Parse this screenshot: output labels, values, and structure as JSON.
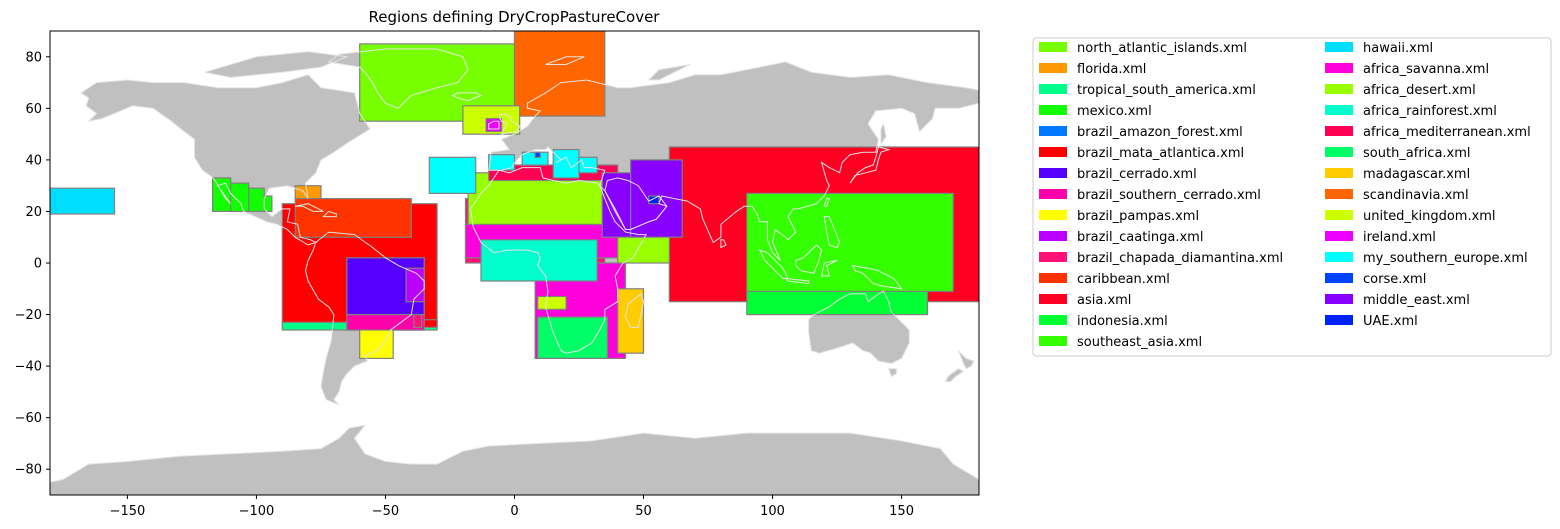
{
  "title": "Regions defining DryCropPastureCover",
  "colors": {
    "land": "#c0c0c0",
    "coast": "#e4e4e4",
    "region_edge": "#808080",
    "ocean": "#ffffff"
  },
  "chart_data": {
    "type": "map",
    "title": "Regions defining DryCropPastureCover",
    "xlim": [
      -180,
      180
    ],
    "ylim": [
      -90,
      90
    ],
    "xticks": [
      -150,
      -100,
      -50,
      0,
      50,
      100,
      150
    ],
    "yticks": [
      -80,
      -60,
      -40,
      -20,
      0,
      20,
      40,
      60,
      80
    ],
    "legend_position": "outside-right",
    "regions": [
      {
        "name": "north_atlantic_islands.xml",
        "color": "#77ff00",
        "boxes": [
          [
            -60,
            55,
            0,
            85
          ]
        ]
      },
      {
        "name": "florida.xml",
        "color": "#ff9900",
        "boxes": [
          [
            -85,
            24,
            -75,
            30
          ]
        ]
      },
      {
        "name": "tropical_south_america.xml",
        "color": "#00ff88",
        "boxes": [
          [
            -90,
            -26,
            -30,
            -23
          ]
        ]
      },
      {
        "name": "mexico.xml",
        "color": "#11ff00",
        "boxes": [
          [
            -117,
            20,
            -110,
            33
          ],
          [
            -110,
            20,
            -103,
            31
          ],
          [
            -103,
            20,
            -97,
            29
          ],
          [
            -97,
            20,
            -94,
            26
          ]
        ]
      },
      {
        "name": "brazil_amazon_forest.xml",
        "color": "#0077ff",
        "boxes": []
      },
      {
        "name": "brazil_mata_atlantica.xml",
        "color": "#ff0000",
        "boxes": [
          [
            -90,
            -23,
            -30,
            23
          ],
          [
            -36,
            -25,
            -30,
            -22
          ]
        ]
      },
      {
        "name": "brazil_cerrado.xml",
        "color": "#5500ff",
        "boxes": [
          [
            -65,
            -20,
            -35,
            2
          ]
        ]
      },
      {
        "name": "brazil_southern_cerrado.xml",
        "color": "#ff00aa",
        "boxes": [
          [
            -65,
            -26,
            -35,
            -20
          ]
        ]
      },
      {
        "name": "brazil_pampas.xml",
        "color": "#ffff00",
        "boxes": [
          [
            -60,
            -37,
            -47,
            -26
          ]
        ]
      },
      {
        "name": "brazil_caatinga.xml",
        "color": "#bb00ff",
        "boxes": [
          [
            -42,
            -15,
            -35,
            -2
          ]
        ]
      },
      {
        "name": "brazil_chapada_diamantina.xml",
        "color": "#ff1177",
        "boxes": [
          [
            -19,
            0,
            35,
            25
          ],
          [
            -39,
            -25,
            -36,
            -20
          ]
        ]
      },
      {
        "name": "caribbean.xml",
        "color": "#ff3300",
        "boxes": [
          [
            -85,
            10,
            -40,
            25
          ]
        ]
      },
      {
        "name": "asia.xml",
        "color": "#ff0022",
        "boxes": [
          [
            60,
            -15,
            180,
            45
          ]
        ]
      },
      {
        "name": "indonesia.xml",
        "color": "#00ff33",
        "boxes": [
          [
            90,
            -20,
            160,
            -11
          ]
        ]
      },
      {
        "name": "southeast_asia.xml",
        "color": "#33ff00",
        "boxes": [
          [
            90,
            -11,
            170,
            27
          ]
        ]
      },
      {
        "name": "hawaii.xml",
        "color": "#00ddff",
        "boxes": [
          [
            -180,
            19,
            -155,
            29
          ]
        ]
      },
      {
        "name": "africa_savanna.xml",
        "color": "#ff00dd",
        "boxes": [
          [
            -19,
            2,
            40,
            15
          ],
          [
            8,
            -37,
            43,
            0
          ]
        ]
      },
      {
        "name": "africa_desert.xml",
        "color": "#99ff00",
        "boxes": [
          [
            -18,
            15,
            40,
            35
          ],
          [
            40,
            0,
            60,
            12
          ]
        ]
      },
      {
        "name": "africa_rainforest.xml",
        "color": "#00ffcc",
        "boxes": [
          [
            -13,
            -7,
            32,
            9
          ]
        ]
      },
      {
        "name": "africa_mediterranean.xml",
        "color": "#ff0055",
        "boxes": [
          [
            -10,
            32,
            40,
            38
          ]
        ]
      },
      {
        "name": "south_africa.xml",
        "color": "#00ff66",
        "boxes": [
          [
            9,
            -37,
            36,
            -21
          ]
        ]
      },
      {
        "name": "madagascar.xml",
        "color": "#ffcc00",
        "boxes": [
          [
            40,
            -35,
            50,
            -10
          ]
        ]
      },
      {
        "name": "scandinavia.xml",
        "color": "#ff6600",
        "boxes": [
          [
            0,
            57,
            35,
            90
          ]
        ]
      },
      {
        "name": "united_kingdom.xml",
        "color": "#ccff00",
        "boxes": [
          [
            -20,
            50,
            2,
            61
          ],
          [
            9,
            -18,
            20,
            -13
          ]
        ]
      },
      {
        "name": "ireland.xml",
        "color": "#ee00ff",
        "boxes": [
          [
            -11,
            51,
            -5,
            56
          ]
        ]
      },
      {
        "name": "my_southern_europe.xml",
        "color": "#00ffff",
        "boxes": [
          [
            -33,
            27,
            -15,
            41
          ],
          [
            -10,
            36,
            0,
            42
          ],
          [
            3,
            38,
            13,
            43
          ],
          [
            15,
            33,
            25,
            44
          ],
          [
            25,
            35,
            32,
            41
          ]
        ]
      },
      {
        "name": "corse.xml",
        "color": "#0044ff",
        "boxes": [
          [
            8,
            41,
            10,
            43
          ]
        ]
      },
      {
        "name": "middle_east.xml",
        "color": "#8800ff",
        "boxes": [
          [
            34,
            10,
            45,
            35
          ],
          [
            45,
            10,
            65,
            40
          ]
        ]
      },
      {
        "name": "UAE.xml",
        "color": "#0022ff",
        "boxes": [
          [
            52,
            23,
            56,
            26
          ]
        ]
      }
    ]
  }
}
